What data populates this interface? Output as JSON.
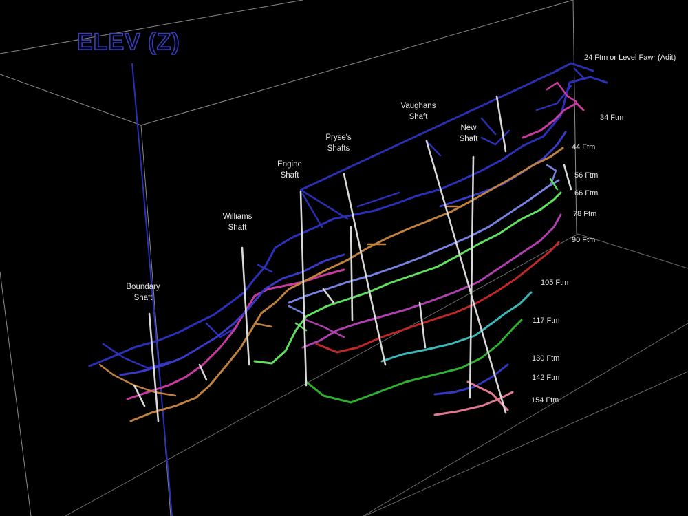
{
  "axis": {
    "title": "ELEV (Z)"
  },
  "colors": {
    "background": "#000000",
    "box": "#8a8a8a",
    "axis": "#2a30b8",
    "shaft": "#d8d8d8"
  },
  "shafts": [
    {
      "id": "boundary",
      "line1": "Boundary",
      "line2": "Shaft"
    },
    {
      "id": "williams",
      "line1": "Williams",
      "line2": "Shaft"
    },
    {
      "id": "engine",
      "line1": "Engine",
      "line2": "Shaft"
    },
    {
      "id": "pryses",
      "line1": "Pryse's",
      "line2": "Shafts"
    },
    {
      "id": "vaughans",
      "line1": "Vaughans",
      "line2": "Shaft"
    },
    {
      "id": "new",
      "line1": "New",
      "line2": "Shaft"
    }
  ],
  "levels": [
    {
      "label": "24 Ftm or Level Fawr (Adit)",
      "color": "#2a2fb0"
    },
    {
      "label": "34 Ftm",
      "color": "#c83aa0"
    },
    {
      "label": "44 Ftm",
      "color": "#3a3ac8"
    },
    {
      "label": "56 Ftm",
      "color": "#c08040"
    },
    {
      "label": "66 Ftm",
      "color": "#7880e0"
    },
    {
      "label": "78 Ftm",
      "color": "#60e060"
    },
    {
      "label": "90 Ftm",
      "color": "#b040b0"
    },
    {
      "label": "105 Ftm",
      "color": "#c02828"
    },
    {
      "label": "117 Ftm",
      "color": "#3cb8b8"
    },
    {
      "label": "130 Ftm",
      "color": "#30b030"
    },
    {
      "label": "142 Ftm",
      "color": "#3038c0"
    },
    {
      "label": "154 Ftm",
      "color": "#e07890"
    }
  ]
}
